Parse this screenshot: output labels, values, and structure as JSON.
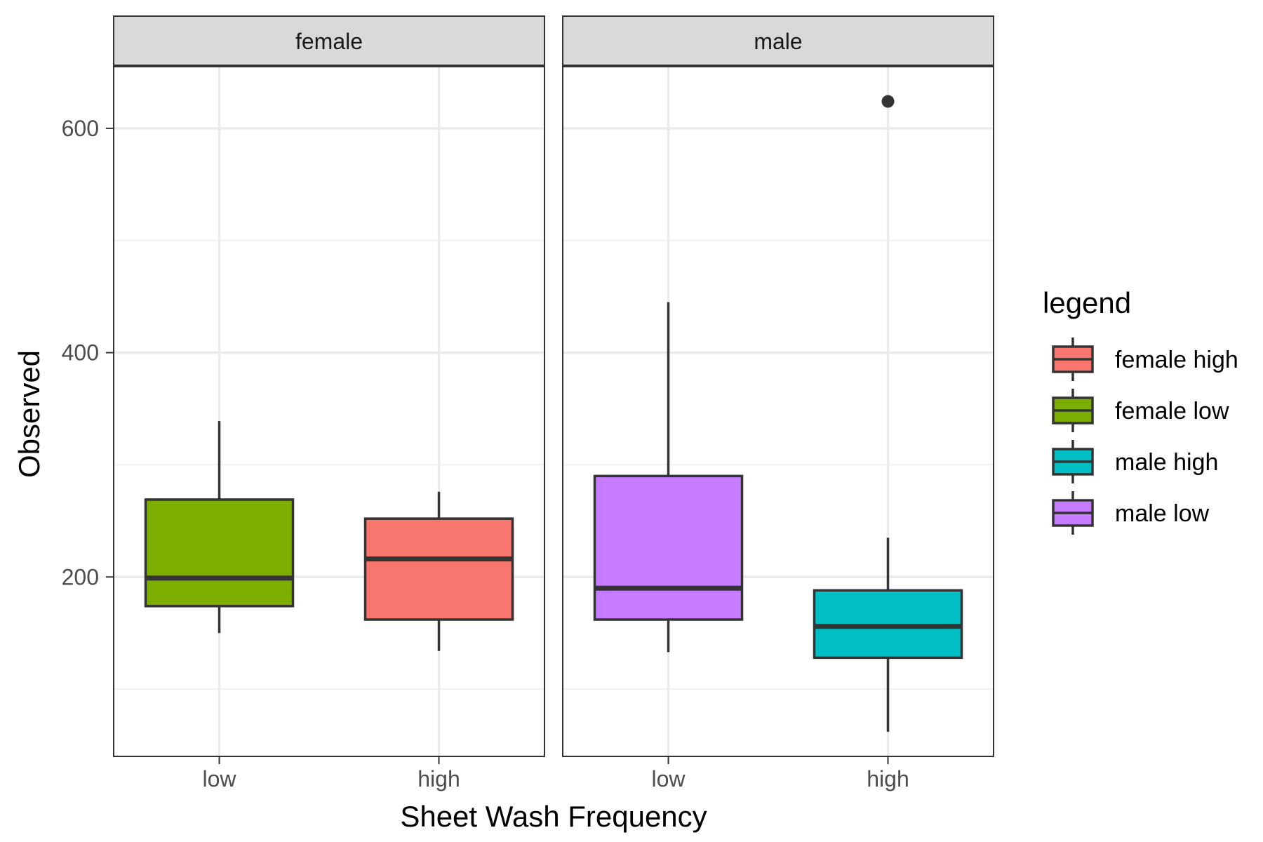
{
  "chart_data": {
    "type": "boxplot",
    "facets": [
      "female",
      "male"
    ],
    "categories": [
      "low",
      "high"
    ],
    "xlabel": "Sheet Wash Frequency",
    "ylabel": "Observed",
    "ylim": [
      40,
      655
    ],
    "yticks": [
      200,
      400,
      600
    ],
    "grid": true,
    "legend": {
      "title": "legend",
      "position": "right",
      "entries": [
        {
          "label": "female high",
          "color": "#F8766D"
        },
        {
          "label": "female low",
          "color": "#7CAE00"
        },
        {
          "label": "male high",
          "color": "#00BFC4"
        },
        {
          "label": "male low",
          "color": "#C77CFF"
        }
      ]
    },
    "boxes": [
      {
        "facet": "female",
        "category": "low",
        "group": "female low",
        "color": "#7CAE00",
        "whisker_low": 150,
        "q1": 174,
        "median": 199,
        "q3": 269,
        "whisker_high": 339,
        "outliers": []
      },
      {
        "facet": "female",
        "category": "high",
        "group": "female high",
        "color": "#F8766D",
        "whisker_low": 134,
        "q1": 162,
        "median": 216,
        "q3": 252,
        "whisker_high": 276,
        "outliers": []
      },
      {
        "facet": "male",
        "category": "low",
        "group": "male low",
        "color": "#C77CFF",
        "whisker_low": 133,
        "q1": 162,
        "median": 190,
        "q3": 290,
        "whisker_high": 445,
        "outliers": []
      },
      {
        "facet": "male",
        "category": "high",
        "group": "male high",
        "color": "#00BFC4",
        "whisker_low": 62,
        "q1": 128,
        "median": 156,
        "q3": 188,
        "whisker_high": 235,
        "outliers": [
          624
        ]
      }
    ]
  }
}
